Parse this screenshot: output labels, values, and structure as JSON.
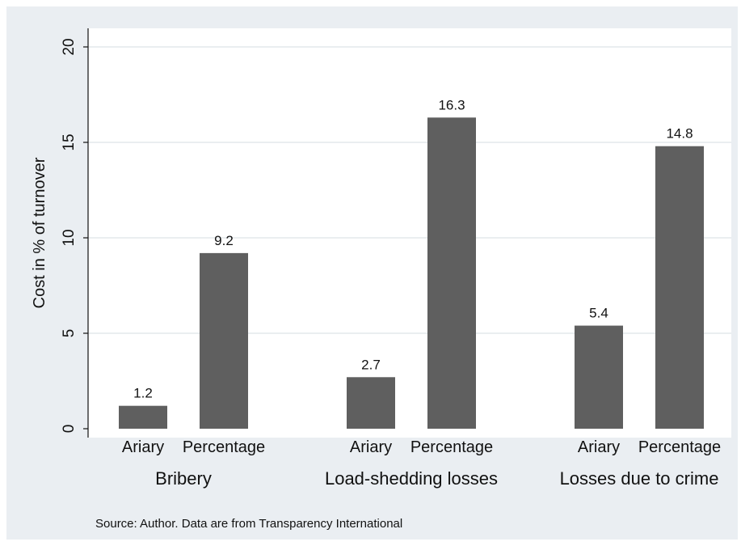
{
  "chart_data": {
    "type": "bar",
    "ylabel": "Cost in % of turnover",
    "ylim": [
      0,
      20
    ],
    "yticks": [
      "0",
      "5",
      "10",
      "15",
      "20"
    ],
    "ytick_values": [
      0,
      5,
      10,
      15,
      20
    ],
    "grid": true,
    "groups": [
      {
        "name": "Bribery",
        "bars": [
          {
            "category": "Ariary",
            "value": 1.2,
            "label": "1.2"
          },
          {
            "category": "Percentage",
            "value": 9.2,
            "label": "9.2"
          }
        ]
      },
      {
        "name": "Load-shedding losses",
        "bars": [
          {
            "category": "Ariary",
            "value": 2.7,
            "label": "2.7"
          },
          {
            "category": "Percentage",
            "value": 16.3,
            "label": "16.3"
          }
        ]
      },
      {
        "name": "Losses due to crime",
        "bars": [
          {
            "category": "Ariary",
            "value": 5.4,
            "label": "5.4"
          },
          {
            "category": "Percentage",
            "value": 14.8,
            "label": "14.8"
          }
        ]
      }
    ],
    "bar_color": "#5f5f5f",
    "note": "Source: Author. Data are from Transparency International"
  }
}
